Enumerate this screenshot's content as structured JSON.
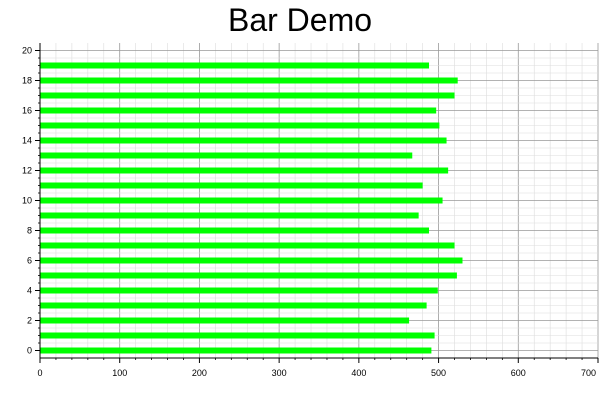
{
  "chart_data": {
    "type": "bar",
    "orientation": "horizontal",
    "title": "Bar Demo",
    "xlabel": "",
    "ylabel": "",
    "xlim": [
      0,
      700
    ],
    "ylim": [
      -0.5,
      20.5
    ],
    "x_ticks": [
      0,
      100,
      200,
      300,
      400,
      500,
      600,
      700
    ],
    "y_ticks": [
      0,
      2,
      4,
      6,
      8,
      10,
      12,
      14,
      16,
      18,
      20
    ],
    "grid": true,
    "legend": "none",
    "bar_color": "#00ff00",
    "categories": [
      0,
      1,
      2,
      3,
      4,
      5,
      6,
      7,
      8,
      9,
      10,
      11,
      12,
      13,
      14,
      15,
      16,
      17,
      18,
      19
    ],
    "values": [
      491,
      495,
      463,
      485,
      499,
      523,
      530,
      520,
      488,
      475,
      505,
      480,
      512,
      467,
      510,
      501,
      497,
      520,
      524,
      488
    ]
  }
}
